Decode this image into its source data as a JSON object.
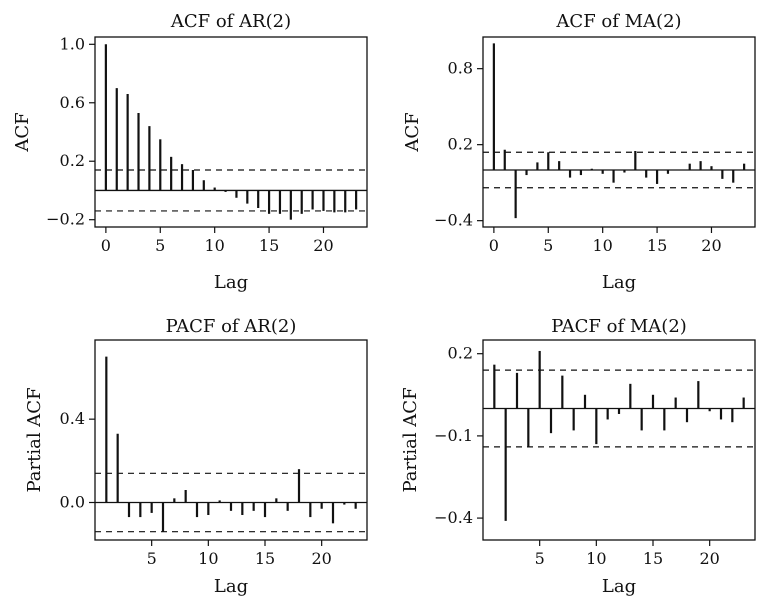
{
  "chart_data": [
    {
      "type": "bar",
      "title": "ACF of AR(2)",
      "xlabel": "Lag",
      "ylabel": "ACF",
      "xlim": [
        -1,
        24
      ],
      "ylim": [
        -0.25,
        1.05
      ],
      "xticks": [
        0,
        5,
        10,
        15,
        20
      ],
      "yticks": [
        1.0,
        0.6,
        0.2,
        -0.2
      ],
      "ytick_labels": [
        "1.0",
        "0.6",
        "0.2",
        "−0.2"
      ],
      "x": [
        0,
        1,
        2,
        3,
        4,
        5,
        6,
        7,
        8,
        9,
        10,
        11,
        12,
        13,
        14,
        15,
        16,
        17,
        18,
        19,
        20,
        21,
        22,
        23
      ],
      "values": [
        1.0,
        0.7,
        0.66,
        0.53,
        0.44,
        0.35,
        0.23,
        0.18,
        0.14,
        0.07,
        0.02,
        -0.01,
        -0.05,
        -0.09,
        -0.12,
        -0.16,
        -0.16,
        -0.2,
        -0.16,
        -0.13,
        -0.14,
        -0.15,
        -0.15,
        -0.13
      ],
      "confidence_band": 0.14,
      "zero_line": true
    },
    {
      "type": "bar",
      "title": "ACF of MA(2)",
      "xlabel": "Lag",
      "ylabel": "ACF",
      "xlim": [
        -1,
        24
      ],
      "ylim": [
        -0.45,
        1.05
      ],
      "xticks": [
        0,
        5,
        10,
        15,
        20
      ],
      "yticks": [
        0.8,
        0.2,
        -0.4
      ],
      "ytick_labels": [
        "0.8",
        "0.2",
        "−0.4"
      ],
      "x": [
        0,
        1,
        2,
        3,
        4,
        5,
        6,
        7,
        8,
        9,
        10,
        11,
        12,
        13,
        14,
        15,
        16,
        17,
        18,
        19,
        20,
        21,
        22,
        23
      ],
      "values": [
        1.0,
        0.16,
        -0.38,
        -0.04,
        0.06,
        0.14,
        0.07,
        -0.06,
        -0.04,
        0.01,
        -0.03,
        -0.1,
        -0.02,
        0.15,
        -0.06,
        -0.11,
        -0.03,
        0.0,
        0.05,
        0.07,
        0.03,
        -0.07,
        -0.1,
        0.05
      ],
      "confidence_band": 0.14,
      "zero_line": true
    },
    {
      "type": "bar",
      "title": "PACF of AR(2)",
      "xlabel": "Lag",
      "ylabel": "Partial ACF",
      "xlim": [
        0,
        24
      ],
      "ylim": [
        -0.18,
        0.78
      ],
      "xticks": [
        5,
        10,
        15,
        20
      ],
      "yticks": [
        0.4,
        0.0
      ],
      "ytick_labels": [
        "0.4",
        "0.0"
      ],
      "x": [
        1,
        2,
        3,
        4,
        5,
        6,
        7,
        8,
        9,
        10,
        11,
        12,
        13,
        14,
        15,
        16,
        17,
        18,
        19,
        20,
        21,
        22,
        23
      ],
      "values": [
        0.7,
        0.33,
        -0.07,
        -0.07,
        -0.05,
        -0.14,
        0.02,
        0.06,
        -0.07,
        -0.06,
        0.01,
        -0.04,
        -0.06,
        -0.04,
        -0.07,
        0.02,
        -0.04,
        0.16,
        -0.07,
        -0.03,
        -0.1,
        -0.01,
        -0.03
      ],
      "confidence_band": 0.14,
      "zero_line": true
    },
    {
      "type": "bar",
      "title": "PACF of MA(2)",
      "xlabel": "Lag",
      "ylabel": "Partial ACF",
      "xlim": [
        0,
        24
      ],
      "ylim": [
        -0.48,
        0.25
      ],
      "xticks": [
        5,
        10,
        15,
        20
      ],
      "yticks": [
        0.2,
        -0.1,
        -0.4
      ],
      "ytick_labels": [
        "0.2",
        "−0.1",
        "−0.4"
      ],
      "x": [
        1,
        2,
        3,
        4,
        5,
        6,
        7,
        8,
        9,
        10,
        11,
        12,
        13,
        14,
        15,
        16,
        17,
        18,
        19,
        20,
        21,
        22,
        23
      ],
      "values": [
        0.16,
        -0.41,
        0.13,
        -0.14,
        0.21,
        -0.09,
        0.12,
        -0.08,
        0.05,
        -0.13,
        -0.04,
        -0.02,
        0.09,
        -0.08,
        0.05,
        -0.08,
        0.04,
        -0.05,
        0.1,
        -0.01,
        -0.04,
        -0.05,
        0.04
      ],
      "confidence_band": 0.14,
      "zero_line": true
    }
  ]
}
